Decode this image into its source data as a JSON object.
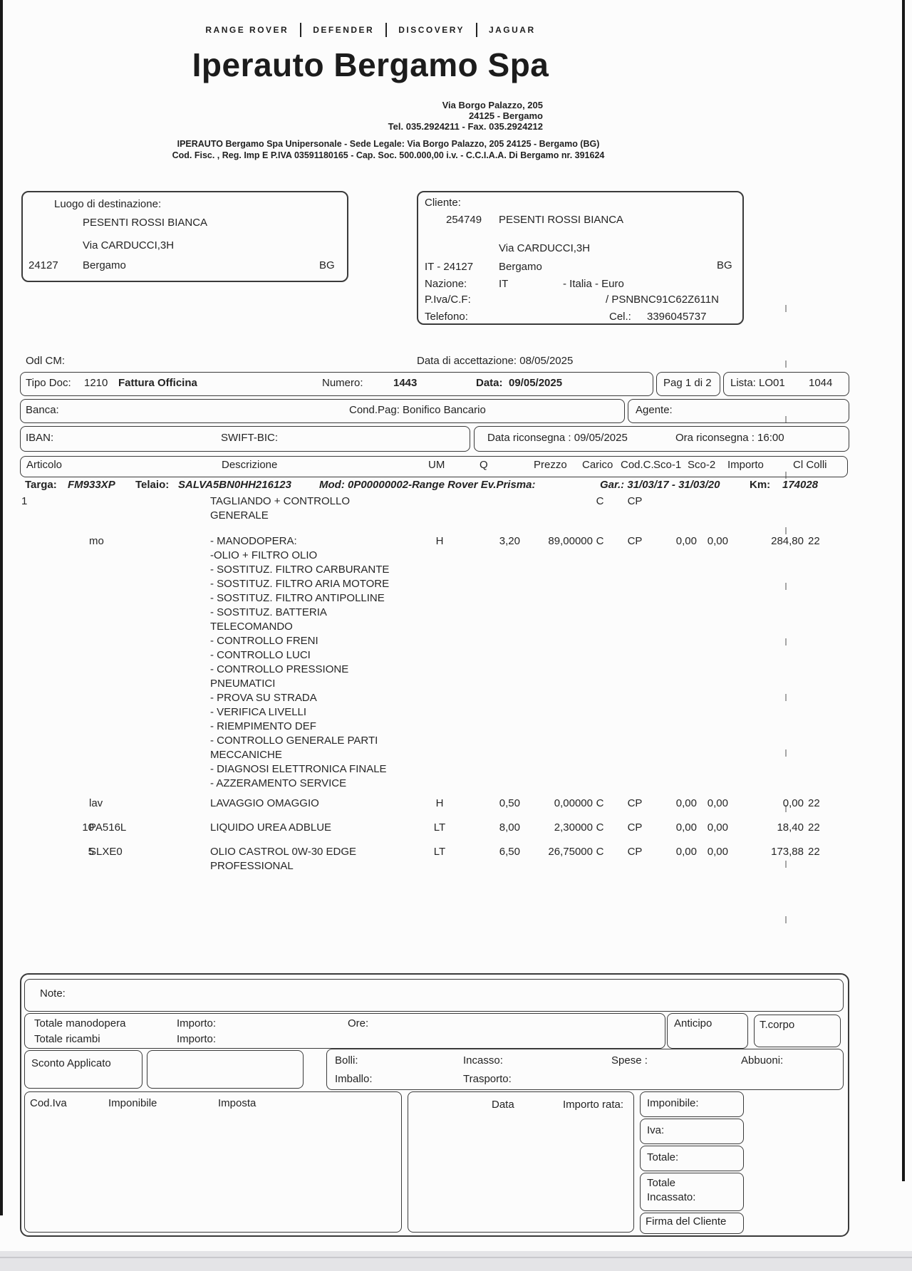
{
  "brands": [
    "RANGE ROVER",
    "DEFENDER",
    "DISCOVERY",
    "JAGUAR"
  ],
  "company": {
    "name": "Iperauto Bergamo Spa",
    "addr1": "Via Borgo Palazzo, 205",
    "addr2": "24125 - Bergamo",
    "addr3": "Tel. 035.2924211 - Fax. 035.2924212",
    "legal1": "IPERAUTO Bergamo Spa Unipersonale - Sede Legale: Via Borgo Palazzo, 205 24125 - Bergamo (BG)",
    "legal2": "Cod. Fisc. , Reg. Imp E P.IVA 03591180165 - Cap. Soc. 500.000,00 i.v. - C.C.I.A.A. Di Bergamo nr. 391624"
  },
  "destination": {
    "label": "Luogo di destinazione:",
    "name": "PESENTI ROSSI BIANCA",
    "street": "Via CARDUCCI,3H",
    "cap": "24127",
    "city": "Bergamo",
    "prov": "BG"
  },
  "client": {
    "label": "Cliente:",
    "code": "254749",
    "name": "PESENTI ROSSI BIANCA",
    "street": "Via CARDUCCI,3H",
    "country_cap": "IT - 24127",
    "city": "Bergamo",
    "prov": "BG",
    "nazione_label": "Nazione:",
    "nazione_value": "IT",
    "nazione_extra": "- Italia - Euro",
    "piva_label": "P.Iva/C.F:",
    "piva_value": "/ PSNBNC91C62Z611N",
    "tel_label": "Telefono:",
    "cel_label": "Cel.:",
    "cel_value": "3396045737"
  },
  "odl": {
    "label": "Odl CM:",
    "accettazione": "Data di accettazione: 08/05/2025"
  },
  "doc": {
    "tipo_label": "Tipo Doc:",
    "tipo_code": "1210",
    "tipo_name": "Fattura Officina",
    "numero_label": "Numero:",
    "numero": "1443",
    "data_label": "Data:",
    "data": "09/05/2025",
    "pag": "Pag 1 di 2",
    "lista_label": "Lista: LO01",
    "lista_num": "1044"
  },
  "banca": {
    "label": "Banca:",
    "condpag": "Cond.Pag: Bonifico Bancario",
    "agente": "Agente:"
  },
  "iban": {
    "label": "IBAN:",
    "swift": "SWIFT-BIC:",
    "riconsegna": "Data riconsegna : 09/05/2025",
    "ora": "Ora riconsegna : 16:00"
  },
  "table": {
    "headers": [
      "Articolo",
      "Descrizione",
      "UM",
      "Q",
      "Prezzo",
      "Carico",
      "Cod.C.",
      "Sco-1",
      "Sco-2",
      "Importo",
      "Cl Colli"
    ]
  },
  "vehicle": {
    "targa_label": "Targa:",
    "targa": "FM933XP",
    "telaio_label": "Telaio:",
    "telaio": "SALVA5BN0HH216123",
    "mod": "Mod: 0P00000002-Range Rover Ev.Prisma:",
    "gar": "Gar.: 31/03/17 - 31/03/20",
    "km_label": "Km:",
    "km": "174028"
  },
  "items": [
    {
      "q": "1",
      "code": "",
      "desc_lines": [
        "TAGLIANDO + CONTROLLO",
        "GENERALE"
      ],
      "um": "",
      "qty": "",
      "prezzo": "",
      "carico": "C",
      "codc": "CP",
      "sco1": "",
      "sco2": "",
      "importo": "",
      "colli": ""
    },
    {
      "q": "",
      "code": "mo",
      "desc_lines": [
        "- MANODOPERA:",
        "-OLIO + FILTRO OLIO",
        "- SOSTITUZ. FILTRO CARBURANTE",
        "- SOSTITUZ. FILTRO ARIA MOTORE",
        "- SOSTITUZ. FILTRO ANTIPOLLINE",
        "- SOSTITUZ. BATTERIA",
        "TELECOMANDO",
        "- CONTROLLO FRENI",
        "- CONTROLLO LUCI",
        "- CONTROLLO PRESSIONE",
        "PNEUMATICI",
        "- PROVA SU STRADA",
        "- VERIFICA LIVELLI",
        "- RIEMPIMENTO DEF",
        "- CONTROLLO GENERALE PARTI",
        "MECCANICHE",
        "- DIAGNOSI ELETTRONICA FINALE",
        "- AZZERAMENTO SERVICE"
      ],
      "um": "H",
      "qty": "3,20",
      "prezzo": "89,00000",
      "carico": "C",
      "codc": "CP",
      "sco1": "0,00",
      "sco2": "0,00",
      "importo": "284,80",
      "colli": "22"
    },
    {
      "q": "",
      "code": "lav",
      "desc_lines": [
        "LAVAGGIO OMAGGIO"
      ],
      "um": "H",
      "qty": "0,50",
      "prezzo": "0,00000",
      "carico": "C",
      "codc": "CP",
      "sco1": "0,00",
      "sco2": "0,00",
      "importo": "0,00",
      "colli": "22"
    },
    {
      "q": "10",
      "code": "PA516L",
      "desc_lines": [
        "LIQUIDO UREA ADBLUE"
      ],
      "um": "LT",
      "qty": "8,00",
      "prezzo": "2,30000",
      "carico": "C",
      "codc": "CP",
      "sco1": "0,00",
      "sco2": "0,00",
      "importo": "18,40",
      "colli": "22"
    },
    {
      "q": "5",
      "code": "SLXE0",
      "desc_lines": [
        "OLIO CASTROL 0W-30 EDGE",
        "PROFESSIONAL"
      ],
      "um": "LT",
      "qty": "6,50",
      "prezzo": "26,75000",
      "carico": "C",
      "codc": "CP",
      "sco1": "0,00",
      "sco2": "0,00",
      "importo": "173,88",
      "colli": "22"
    }
  ],
  "footer": {
    "note_label": "Note:",
    "tot_manodopera": "Totale manodopera",
    "importo_label1": "Importo:",
    "ore_label": "Ore:",
    "tot_ricambi": "Totale ricambi",
    "importo_label2": "Importo:",
    "anticipo": "Anticipo",
    "tcorpo": "T.corpo",
    "sconto": "Sconto  Applicato",
    "bolli": "Bolli:",
    "incasso": "Incasso:",
    "spese": "Spese :",
    "abbuoni": "Abbuoni:",
    "imballo": "Imballo:",
    "trasporto": "Trasporto:",
    "codiva": "Cod.Iva",
    "imponibile_h": "Imponibile",
    "imposta_h": "Imposta",
    "data_h": "Data",
    "importo_rata": "Importo rata:",
    "imponibile": "Imponibile:",
    "iva": "Iva:",
    "totale": "Totale:",
    "totale_inc1": "Totale",
    "totale_inc2": "Incassato:",
    "firma": "Firma del Cliente"
  }
}
